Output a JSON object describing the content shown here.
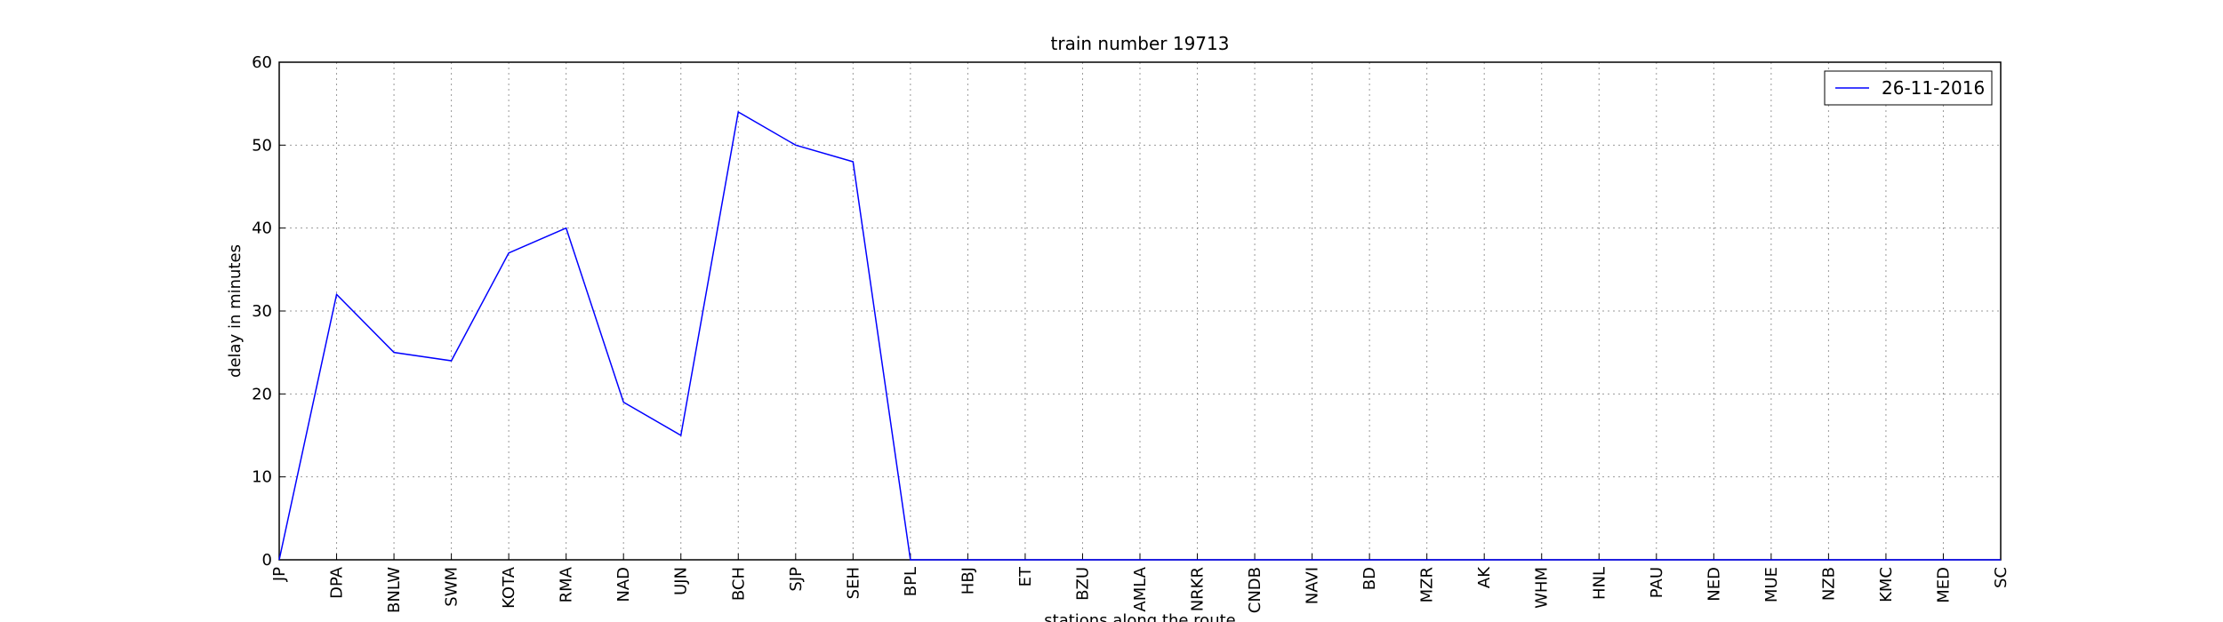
{
  "chart_data": {
    "type": "line",
    "title": "train number 19713",
    "x_label": "stations along the route",
    "y_label": "delay in minutes",
    "categories": [
      "JP",
      "DPA",
      "BNLW",
      "SWM",
      "KOTA",
      "RMA",
      "NAD",
      "UJN",
      "BCH",
      "SJP",
      "SEH",
      "BPL",
      "HBJ",
      "ET",
      "BZU",
      "AMLA",
      "NRKR",
      "CNDB",
      "NAVI",
      "BD",
      "MZR",
      "AK",
      "WHM",
      "HNL",
      "PAU",
      "NED",
      "MUE",
      "NZB",
      "KMC",
      "MED",
      "SC"
    ],
    "series": [
      {
        "name": "26-11-2016",
        "color": "#0000ff",
        "values": [
          0,
          32,
          25,
          24,
          37,
          40,
          19,
          15,
          54,
          50,
          48,
          0,
          0,
          0,
          0,
          0,
          0,
          0,
          0,
          0,
          0,
          0,
          0,
          0,
          0,
          0,
          0,
          0,
          0,
          0,
          0
        ]
      }
    ],
    "ylim": [
      0,
      60
    ],
    "yticks": [
      0,
      10,
      20,
      30,
      40,
      50,
      60
    ],
    "grid": true,
    "legend": "upper right"
  }
}
